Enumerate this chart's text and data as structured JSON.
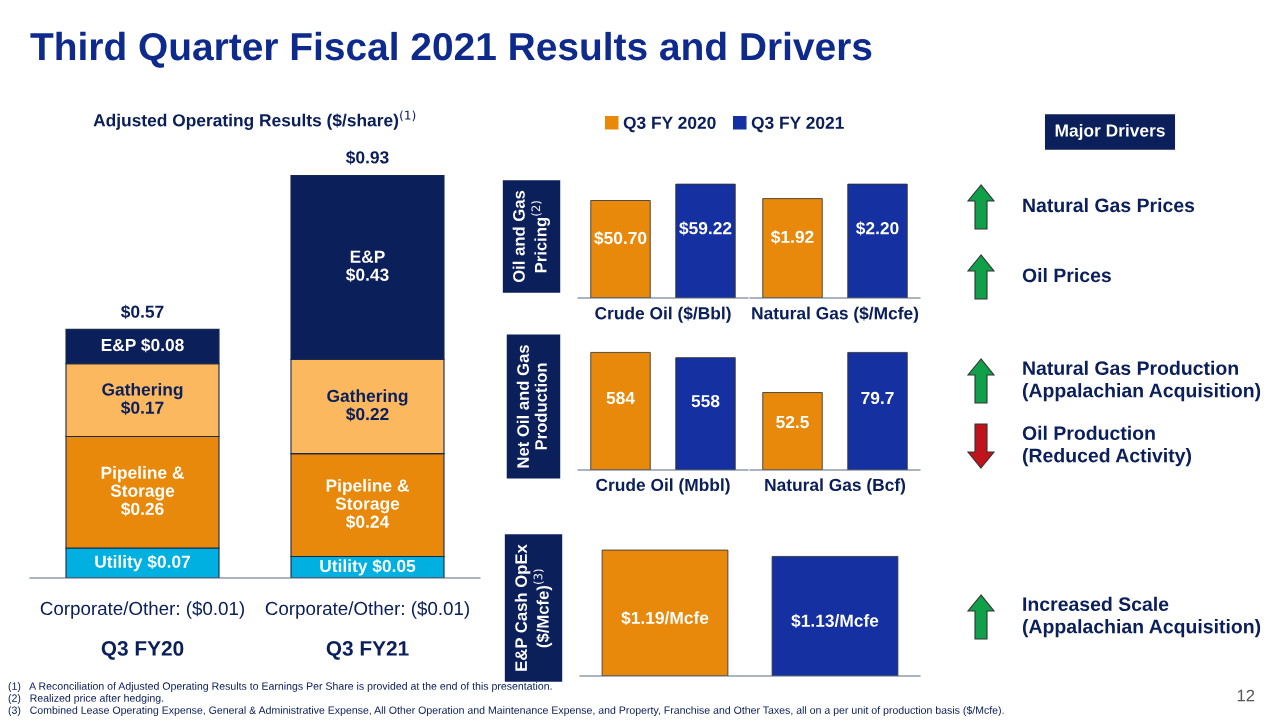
{
  "chart_data": [
    {
      "type": "bar",
      "stacked": true,
      "title": "Adjusted Operating Results ($/share)$^{(1)}$",
      "categories": [
        "Q3 FY20",
        "Q3 FY21"
      ],
      "series": [
        {
          "color": "#00b0e0",
          "values": [
            0.07,
            0.05
          ],
          "value_labels": [
            "Utility $0.07",
            "Utility $0.05"
          ]
        },
        {
          "color": "#e8890c",
          "values": [
            0.26,
            0.24
          ],
          "value_labels": [
            "Pipeline &\nStorage\n$0.26",
            "Pipeline &\nStorage\n$0.24"
          ]
        },
        {
          "color": "#fbb85e",
          "values": [
            0.17,
            0.22
          ],
          "value_labels": [
            "Gathering\n$0.17",
            "Gathering\n$0.22"
          ]
        },
        {
          "color": "#0b1f5a",
          "values": [
            0.08,
            0.43
          ],
          "value_labels": [
            "E&P $0.08",
            "E&P\n$0.43"
          ]
        }
      ],
      "totals": [
        "$0.57",
        "$0.93"
      ],
      "annotations": [
        "Third Quarter Fiscal 2021 Results and Drivers",
        "(1)   A Reconciliation of Adjusted Operating Results to Earnings Per Share is provided at the end of this presentation.",
        "(2)   Realized price after hedging.",
        "(3)   Combined Lease Operating Expense, General & Administrative Expense, All Other Operation and Maintenance Expense, and Property, Franchise and Other Taxes, all on a per unit of production basis ($/Mcfe).",
        "12",
        "Corporate/Other: ($0.01)",
        "Corporate/Other: ($0.01)"
      ]
    },
    {
      "type": "bar",
      "ylabel": "Oil and Gas\nPricing$^{(2)}$",
      "categories": [
        "Crude Oil ($/Bbl)"
      ],
      "legend": "top",
      "series": [
        {
          "name": "Q3 FY 2020",
          "color": "#e8890c",
          "values": [
            50.7
          ],
          "value_labels": [
            "$50.70"
          ]
        },
        {
          "name": "Q3 FY 2021",
          "color": "#1530a0",
          "values": [
            59.22
          ],
          "value_labels": [
            "$59.22"
          ]
        }
      ]
    },
    {
      "type": "bar",
      "categories": [
        "Natural Gas ($/Mcfe)"
      ],
      "series": [
        {
          "color": "#e8890c",
          "values": [
            1.92
          ],
          "value_labels": [
            "$1.92"
          ]
        },
        {
          "color": "#1530a0",
          "values": [
            2.2
          ],
          "value_labels": [
            "$2.20"
          ]
        }
      ]
    },
    {
      "type": "bar",
      "ylabel": "Net Oil and Gas\nProduction",
      "categories": [
        "Crude Oil (Mbbl)"
      ],
      "series": [
        {
          "color": "#e8890c",
          "values": [
            584
          ],
          "value_labels": [
            "584"
          ]
        },
        {
          "color": "#1530a0",
          "values": [
            558
          ],
          "value_labels": [
            "558"
          ]
        }
      ]
    },
    {
      "type": "bar",
      "categories": [
        "Natural Gas (Bcf)"
      ],
      "series": [
        {
          "color": "#e8890c",
          "values": [
            52.5
          ],
          "value_labels": [
            "52.5"
          ]
        },
        {
          "color": "#1530a0",
          "values": [
            79.7
          ],
          "value_labels": [
            "79.7"
          ]
        }
      ]
    },
    {
      "type": "bar",
      "ylabel": "E&P Cash OpEx\n($/Mcfe)$^{(3)}$",
      "categories": [
        null,
        null
      ],
      "values": [
        1.19,
        1.13
      ],
      "colors": [
        "#e8890c",
        "#1530a0"
      ],
      "value_labels": [
        "$1.19/Mcfe",
        "$1.13/Mcfe"
      ]
    },
    {
      "type": "other",
      "title": "Major Drivers",
      "annotations": [
        "Natural Gas Prices",
        "Oil Prices",
        "Natural Gas Production\n(Appalachian Acquisition)",
        "Oil Production\n(Reduced Activity)",
        "Increased Scale\n(Appalachian Acquisition)"
      ]
    }
  ]
}
